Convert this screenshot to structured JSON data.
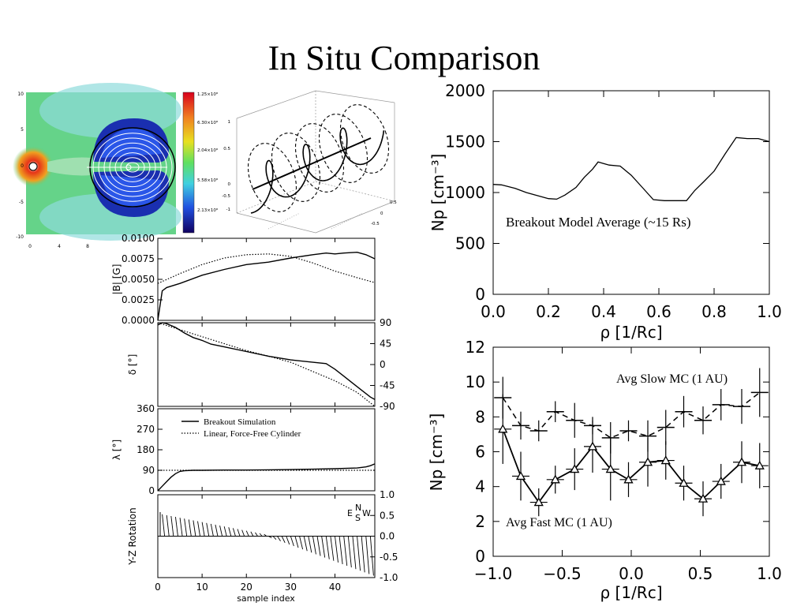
{
  "slide": {
    "title": "In Situ Comparison"
  },
  "chart_data": [
    {
      "type": "heatmap",
      "panel": "simulation-cross-section",
      "x_ticks": [
        "0",
        "4",
        "8"
      ],
      "y_ticks": [
        "10",
        "5",
        "0",
        "-5",
        "-10"
      ],
      "colorbar_ticks": [
        "1.25×10⁸",
        "6.30×10⁸",
        "2.04×10⁸",
        "5.58×10⁸",
        "2.13×10⁸"
      ],
      "colors": {
        "background": "#5fd27a",
        "cavity": "#1a2fb0",
        "inner": "#2a56e8",
        "halo": "#8fdcdc",
        "sun": "#e63418"
      }
    },
    {
      "type": "line",
      "panel": "flux-rope-3d",
      "y_ticks": [
        "1",
        "0.5",
        "0",
        "-0.5",
        "-1"
      ],
      "x_ticks": [
        "-0.5",
        "0",
        "0.5"
      ]
    },
    {
      "type": "line",
      "panel": "magnitude-B",
      "ylabel": "|B| [G]",
      "y_ticks": [
        "0.0100",
        "0.0075",
        "0.0050",
        "0.0025",
        "0.0000"
      ],
      "xlim": [
        0,
        49
      ],
      "ylim": [
        0,
        0.01
      ],
      "series": [
        {
          "name": "Breakout Simulation",
          "x": [
            0,
            1,
            2,
            5,
            10,
            15,
            20,
            25,
            30,
            35,
            38,
            40,
            42,
            45,
            47,
            49
          ],
          "y": [
            0,
            0.0036,
            0.004,
            0.0045,
            0.0055,
            0.0062,
            0.0068,
            0.0071,
            0.0076,
            0.008,
            0.0082,
            0.0081,
            0.0082,
            0.0083,
            0.008,
            0.0075
          ]
        },
        {
          "name": "Linear, Force-Free Cylinder",
          "x": [
            0,
            5,
            10,
            15,
            20,
            25,
            30,
            35,
            40,
            45,
            49
          ],
          "y": [
            0.0045,
            0.0057,
            0.0068,
            0.0076,
            0.008,
            0.0081,
            0.0078,
            0.007,
            0.006,
            0.0052,
            0.0046
          ]
        }
      ]
    },
    {
      "type": "line",
      "panel": "delta-angle",
      "ylabel": "δ [°]",
      "y_ticks": [
        "90",
        "45",
        "0",
        "-45",
        "-90"
      ],
      "xlim": [
        0,
        49
      ],
      "ylim": [
        -90,
        90
      ],
      "series": [
        {
          "name": "Breakout Simulation",
          "x": [
            0,
            1,
            2,
            4,
            6,
            8,
            10,
            12,
            15,
            20,
            25,
            30,
            35,
            38,
            40,
            42,
            44,
            46,
            48,
            49
          ],
          "y": [
            85,
            90,
            88,
            80,
            68,
            58,
            52,
            44,
            38,
            28,
            18,
            10,
            5,
            2,
            -10,
            -25,
            -40,
            -55,
            -70,
            -75
          ]
        },
        {
          "name": "Linear, Force-Free Cylinder",
          "x": [
            0,
            5,
            10,
            15,
            20,
            25,
            30,
            35,
            40,
            45,
            49
          ],
          "y": [
            90,
            75,
            60,
            45,
            30,
            18,
            5,
            -15,
            -35,
            -60,
            -90
          ]
        }
      ]
    },
    {
      "type": "line",
      "panel": "lambda-angle",
      "ylabel": "λ [°]",
      "y_ticks": [
        "360",
        "270",
        "180",
        "90",
        "0"
      ],
      "xlim": [
        0,
        49
      ],
      "ylim": [
        0,
        360
      ],
      "legend": [
        "Breakout Simulation",
        "Linear, Force-Free Cylinder"
      ],
      "series": [
        {
          "name": "Breakout Simulation",
          "x": [
            0,
            1,
            2,
            3,
            4,
            5,
            6,
            8,
            10,
            15,
            20,
            25,
            30,
            35,
            40,
            45,
            47,
            48,
            49
          ],
          "y": [
            0,
            20,
            40,
            60,
            75,
            85,
            88,
            90,
            90,
            91,
            91,
            92,
            93,
            95,
            97,
            100,
            105,
            110,
            118
          ]
        },
        {
          "name": "Linear, Force-Free Cylinder",
          "x": [
            0,
            49
          ],
          "y": [
            90,
            90
          ]
        }
      ]
    },
    {
      "type": "bar",
      "panel": "yz-rotation",
      "ylabel": "Y-Z Rotation",
      "xlabel": "sample index",
      "y_ticks": [
        "1.0",
        "0.5",
        "0.0",
        "-0.5",
        "-1.0"
      ],
      "x_ticks": [
        "0",
        "10",
        "20",
        "30",
        "40"
      ],
      "compass": {
        "n": "N",
        "e": "E",
        "s": "S",
        "w": "W"
      },
      "xlim": [
        0,
        49
      ],
      "ylim": [
        -1,
        1
      ]
    },
    {
      "type": "line",
      "panel": "breakout-model-average",
      "xlabel": "ρ [1/Rc]",
      "ylabel": "Np [cm⁻³]",
      "annotation": "Breakout Model Average (~15 Rs)",
      "x_ticks": [
        "0.0",
        "0.2",
        "0.4",
        "0.6",
        "0.8",
        "1.0"
      ],
      "y_ticks": [
        "0",
        "500",
        "1000",
        "1500",
        "2000"
      ],
      "xlim": [
        0,
        1
      ],
      "ylim": [
        0,
        2000
      ],
      "series": [
        {
          "x": [
            0,
            0.03,
            0.08,
            0.12,
            0.16,
            0.2,
            0.23,
            0.26,
            0.3,
            0.33,
            0.36,
            0.38,
            0.42,
            0.46,
            0.5,
            0.54,
            0.58,
            0.62,
            0.66,
            0.7,
            0.73,
            0.76,
            0.8,
            0.84,
            0.88,
            0.92,
            0.96,
            1.0
          ],
          "y": [
            1080,
            1075,
            1040,
            1000,
            970,
            940,
            935,
            975,
            1050,
            1150,
            1230,
            1300,
            1270,
            1260,
            1170,
            1050,
            930,
            920,
            920,
            920,
            1020,
            1100,
            1210,
            1380,
            1540,
            1530,
            1530,
            1500
          ]
        }
      ]
    },
    {
      "type": "line",
      "panel": "avg-mc",
      "xlabel": "ρ [1/Rc]",
      "ylabel": "Np [cm⁻³]",
      "x_ticks": [
        "−1.0",
        "−0.5",
        "0.0",
        "0.5",
        "1.0"
      ],
      "y_ticks": [
        "0",
        "2",
        "4",
        "6",
        "8",
        "10",
        "12"
      ],
      "xlim": [
        -1,
        1
      ],
      "ylim": [
        0,
        12
      ],
      "series": [
        {
          "name": "Avg Slow MC (1 AU)",
          "x": [
            -0.93,
            -0.8,
            -0.67,
            -0.55,
            -0.41,
            -0.28,
            -0.15,
            -0.02,
            0.12,
            0.25,
            0.38,
            0.52,
            0.65,
            0.8,
            0.93
          ],
          "y": [
            9.1,
            7.5,
            7.2,
            8.3,
            7.8,
            7.5,
            6.8,
            7.2,
            6.9,
            7.4,
            8.3,
            7.8,
            8.7,
            8.6,
            9.4
          ],
          "err": [
            1.2,
            0.8,
            0.6,
            0.6,
            1.0,
            0.5,
            0.9,
            0.6,
            0.9,
            1.0,
            0.9,
            0.8,
            0.9,
            1.0,
            1.4
          ]
        },
        {
          "name": "Avg Fast MC (1 AU)",
          "x": [
            -0.93,
            -0.8,
            -0.67,
            -0.55,
            -0.41,
            -0.28,
            -0.15,
            -0.02,
            0.12,
            0.25,
            0.38,
            0.52,
            0.65,
            0.8,
            0.93
          ],
          "y": [
            7.3,
            4.6,
            3.1,
            4.4,
            5.0,
            6.3,
            5.0,
            4.4,
            5.4,
            5.5,
            4.2,
            3.3,
            4.3,
            5.4,
            5.2
          ],
          "err": [
            2.0,
            1.4,
            0.8,
            0.8,
            1.2,
            1.5,
            1.8,
            1.0,
            1.4,
            1.1,
            1.0,
            1.0,
            1.0,
            1.2,
            1.3
          ]
        }
      ]
    }
  ]
}
